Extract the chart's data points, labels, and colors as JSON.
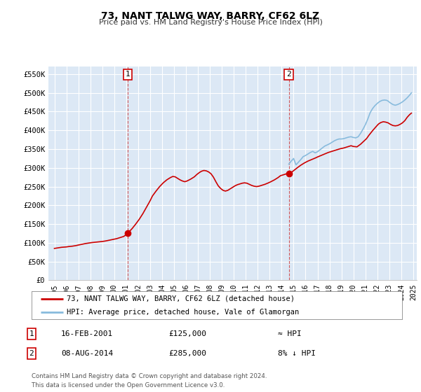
{
  "title": "73, NANT TALWG WAY, BARRY, CF62 6LZ",
  "subtitle": "Price paid vs. HM Land Registry's House Price Index (HPI)",
  "xlim": [
    1994.5,
    2025.3
  ],
  "ylim": [
    0,
    570000
  ],
  "yticks": [
    0,
    50000,
    100000,
    150000,
    200000,
    250000,
    300000,
    350000,
    400000,
    450000,
    500000,
    550000
  ],
  "ytick_labels": [
    "£0",
    "£50K",
    "£100K",
    "£150K",
    "£200K",
    "£250K",
    "£300K",
    "£350K",
    "£400K",
    "£450K",
    "£500K",
    "£550K"
  ],
  "xticks": [
    1995,
    1996,
    1997,
    1998,
    1999,
    2000,
    2001,
    2002,
    2003,
    2004,
    2005,
    2006,
    2007,
    2008,
    2009,
    2010,
    2011,
    2012,
    2013,
    2014,
    2015,
    2016,
    2017,
    2018,
    2019,
    2020,
    2021,
    2022,
    2023,
    2024,
    2025
  ],
  "xtick_labels": [
    "1995",
    "1996",
    "1997",
    "1998",
    "1999",
    "2000",
    "2001",
    "2002",
    "2003",
    "2004",
    "2005",
    "2006",
    "2007",
    "2008",
    "2009",
    "2010",
    "2011",
    "2012",
    "2013",
    "2014",
    "2015",
    "2016",
    "2017",
    "2018",
    "2019",
    "2020",
    "2021",
    "2022",
    "2023",
    "2024",
    "2025"
  ],
  "bg_color": "#dce8f5",
  "grid_color": "#ffffff",
  "price_line_color": "#cc0000",
  "hpi_line_color": "#88bbdd",
  "vline_color": "#cc3333",
  "event1_x": 2001.12,
  "event1_y": 125000,
  "event2_x": 2014.6,
  "event2_y": 285000,
  "legend_label1": "73, NANT TALWG WAY, BARRY, CF62 6LZ (detached house)",
  "legend_label2": "HPI: Average price, detached house, Vale of Glamorgan",
  "event1_label": "1",
  "event1_date": "16-FEB-2001",
  "event1_price": "£125,000",
  "event1_vs_hpi": "≈ HPI",
  "event2_label": "2",
  "event2_date": "08-AUG-2014",
  "event2_price": "£285,000",
  "event2_vs_hpi": "8% ↓ HPI",
  "footer": "Contains HM Land Registry data © Crown copyright and database right 2024.\nThis data is licensed under the Open Government Licence v3.0.",
  "price_data": [
    [
      1995.0,
      85000
    ],
    [
      1995.2,
      86000
    ],
    [
      1995.4,
      87000
    ],
    [
      1995.6,
      88000
    ],
    [
      1995.8,
      88500
    ],
    [
      1996.0,
      89000
    ],
    [
      1996.2,
      90000
    ],
    [
      1996.5,
      91000
    ],
    [
      1996.8,
      92500
    ],
    [
      1997.0,
      94000
    ],
    [
      1997.3,
      96000
    ],
    [
      1997.6,
      98000
    ],
    [
      1997.9,
      99500
    ],
    [
      1998.1,
      100500
    ],
    [
      1998.4,
      101500
    ],
    [
      1998.7,
      102500
    ],
    [
      1999.0,
      103500
    ],
    [
      1999.3,
      105000
    ],
    [
      1999.6,
      107000
    ],
    [
      1999.9,
      109000
    ],
    [
      2000.2,
      111000
    ],
    [
      2000.5,
      114000
    ],
    [
      2000.8,
      117000
    ],
    [
      2001.12,
      125000
    ],
    [
      2001.5,
      138000
    ],
    [
      2001.8,
      150000
    ],
    [
      2002.1,
      163000
    ],
    [
      2002.4,
      178000
    ],
    [
      2002.7,
      195000
    ],
    [
      2003.0,
      212000
    ],
    [
      2003.2,
      225000
    ],
    [
      2003.5,
      238000
    ],
    [
      2003.8,
      250000
    ],
    [
      2004.1,
      260000
    ],
    [
      2004.4,
      268000
    ],
    [
      2004.7,
      274000
    ],
    [
      2004.9,
      277000
    ],
    [
      2005.1,
      276000
    ],
    [
      2005.3,
      272000
    ],
    [
      2005.5,
      268000
    ],
    [
      2005.7,
      265000
    ],
    [
      2005.9,
      263000
    ],
    [
      2006.1,
      265000
    ],
    [
      2006.4,
      270000
    ],
    [
      2006.7,
      276000
    ],
    [
      2006.9,
      282000
    ],
    [
      2007.1,
      287000
    ],
    [
      2007.3,
      291000
    ],
    [
      2007.5,
      293000
    ],
    [
      2007.7,
      292000
    ],
    [
      2007.9,
      289000
    ],
    [
      2008.1,
      284000
    ],
    [
      2008.3,
      275000
    ],
    [
      2008.5,
      263000
    ],
    [
      2008.7,
      252000
    ],
    [
      2008.9,
      245000
    ],
    [
      2009.1,
      240000
    ],
    [
      2009.3,
      238000
    ],
    [
      2009.5,
      240000
    ],
    [
      2009.7,
      244000
    ],
    [
      2009.9,
      248000
    ],
    [
      2010.1,
      252000
    ],
    [
      2010.3,
      255000
    ],
    [
      2010.5,
      257000
    ],
    [
      2010.7,
      259000
    ],
    [
      2010.9,
      260000
    ],
    [
      2011.1,
      259000
    ],
    [
      2011.3,
      256000
    ],
    [
      2011.5,
      253000
    ],
    [
      2011.7,
      251000
    ],
    [
      2011.9,
      250000
    ],
    [
      2012.1,
      251000
    ],
    [
      2012.3,
      253000
    ],
    [
      2012.6,
      256000
    ],
    [
      2012.9,
      260000
    ],
    [
      2013.1,
      263000
    ],
    [
      2013.4,
      268000
    ],
    [
      2013.7,
      274000
    ],
    [
      2013.9,
      279000
    ],
    [
      2014.2,
      282000
    ],
    [
      2014.4,
      284000
    ],
    [
      2014.6,
      285000
    ],
    [
      2014.9,
      290000
    ],
    [
      2015.1,
      295000
    ],
    [
      2015.3,
      300000
    ],
    [
      2015.6,
      307000
    ],
    [
      2015.9,
      313000
    ],
    [
      2016.2,
      318000
    ],
    [
      2016.5,
      322000
    ],
    [
      2016.8,
      326000
    ],
    [
      2017.0,
      329000
    ],
    [
      2017.3,
      333000
    ],
    [
      2017.6,
      337000
    ],
    [
      2017.9,
      341000
    ],
    [
      2018.1,
      343000
    ],
    [
      2018.4,
      346000
    ],
    [
      2018.7,
      349000
    ],
    [
      2018.9,
      351000
    ],
    [
      2019.2,
      353000
    ],
    [
      2019.5,
      356000
    ],
    [
      2019.8,
      359000
    ],
    [
      2020.0,
      357000
    ],
    [
      2020.3,
      356000
    ],
    [
      2020.6,
      363000
    ],
    [
      2020.9,
      372000
    ],
    [
      2021.1,
      378000
    ],
    [
      2021.3,
      387000
    ],
    [
      2021.6,
      399000
    ],
    [
      2021.9,
      410000
    ],
    [
      2022.1,
      417000
    ],
    [
      2022.3,
      421000
    ],
    [
      2022.5,
      423000
    ],
    [
      2022.7,
      422000
    ],
    [
      2022.9,
      420000
    ],
    [
      2023.1,
      416000
    ],
    [
      2023.3,
      413000
    ],
    [
      2023.5,
      412000
    ],
    [
      2023.7,
      413000
    ],
    [
      2023.9,
      416000
    ],
    [
      2024.1,
      420000
    ],
    [
      2024.3,
      426000
    ],
    [
      2024.5,
      435000
    ],
    [
      2024.7,
      442000
    ],
    [
      2024.85,
      446000
    ]
  ],
  "hpi_data": [
    [
      2014.6,
      310000
    ],
    [
      2014.8,
      318000
    ],
    [
      2015.0,
      325000
    ],
    [
      2015.2,
      308000
    ],
    [
      2015.4,
      315000
    ],
    [
      2015.6,
      322000
    ],
    [
      2015.8,
      330000
    ],
    [
      2016.0,
      333000
    ],
    [
      2016.2,
      337000
    ],
    [
      2016.4,
      341000
    ],
    [
      2016.6,
      344000
    ],
    [
      2016.8,
      340000
    ],
    [
      2017.0,
      343000
    ],
    [
      2017.2,
      348000
    ],
    [
      2017.4,
      353000
    ],
    [
      2017.6,
      358000
    ],
    [
      2017.8,
      361000
    ],
    [
      2018.0,
      364000
    ],
    [
      2018.2,
      368000
    ],
    [
      2018.4,
      372000
    ],
    [
      2018.6,
      375000
    ],
    [
      2018.8,
      377000
    ],
    [
      2019.0,
      377000
    ],
    [
      2019.2,
      378000
    ],
    [
      2019.4,
      380000
    ],
    [
      2019.6,
      382000
    ],
    [
      2019.8,
      383000
    ],
    [
      2020.0,
      381000
    ],
    [
      2020.2,
      380000
    ],
    [
      2020.4,
      383000
    ],
    [
      2020.6,
      392000
    ],
    [
      2020.8,
      403000
    ],
    [
      2021.0,
      415000
    ],
    [
      2021.2,
      430000
    ],
    [
      2021.4,
      447000
    ],
    [
      2021.6,
      458000
    ],
    [
      2021.8,
      466000
    ],
    [
      2022.0,
      472000
    ],
    [
      2022.2,
      477000
    ],
    [
      2022.4,
      480000
    ],
    [
      2022.6,
      481000
    ],
    [
      2022.8,
      480000
    ],
    [
      2022.9,
      478000
    ],
    [
      2023.1,
      473000
    ],
    [
      2023.3,
      469000
    ],
    [
      2023.5,
      467000
    ],
    [
      2023.7,
      469000
    ],
    [
      2023.9,
      472000
    ],
    [
      2024.1,
      476000
    ],
    [
      2024.3,
      481000
    ],
    [
      2024.5,
      487000
    ],
    [
      2024.7,
      494000
    ],
    [
      2024.85,
      500000
    ]
  ]
}
